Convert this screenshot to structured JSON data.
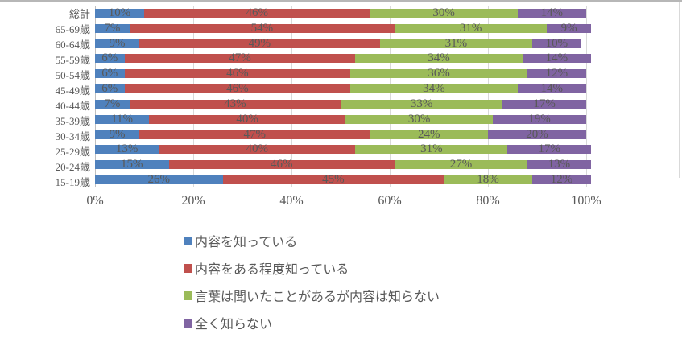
{
  "chart_data": {
    "type": "bar",
    "orientation": "horizontal",
    "stacked": true,
    "title": "",
    "xlabel": "",
    "ylabel": "",
    "xlim": [
      0,
      100
    ],
    "grid": true,
    "legend_position": "bottom-left",
    "x_ticks": [
      "0%",
      "20%",
      "40%",
      "60%",
      "80%",
      "100%"
    ],
    "categories": [
      "総計",
      "65-69歳",
      "60-64歳",
      "55-59歳",
      "50-54歳",
      "45-49歳",
      "40-44歳",
      "35-39歳",
      "30-34歳",
      "25-29歳",
      "20-24歳",
      "15-19歳"
    ],
    "series": [
      {
        "name": "内容を知っている",
        "color": "#4F81BD",
        "values": [
          10,
          7,
          9,
          6,
          6,
          6,
          7,
          11,
          9,
          13,
          15,
          26
        ]
      },
      {
        "name": "内容をある程度知っている",
        "color": "#C0504D",
        "values": [
          46,
          54,
          49,
          47,
          46,
          46,
          43,
          40,
          47,
          40,
          46,
          45
        ]
      },
      {
        "name": "言葉は聞いたことがあるが内容は知らない",
        "color": "#9BBB59",
        "values": [
          30,
          31,
          31,
          34,
          36,
          34,
          33,
          30,
          24,
          31,
          27,
          18
        ]
      },
      {
        "name": "全く知らない",
        "color": "#8064A2",
        "values": [
          14,
          9,
          10,
          14,
          12,
          14,
          17,
          19,
          20,
          17,
          13,
          12
        ]
      }
    ],
    "label_suffix": "%",
    "colors": {
      "label_text": "#595959",
      "grid_line": "#d9d9d9",
      "axis_line": "#bfbfbf",
      "frame_border": "#b7b7b7"
    }
  }
}
